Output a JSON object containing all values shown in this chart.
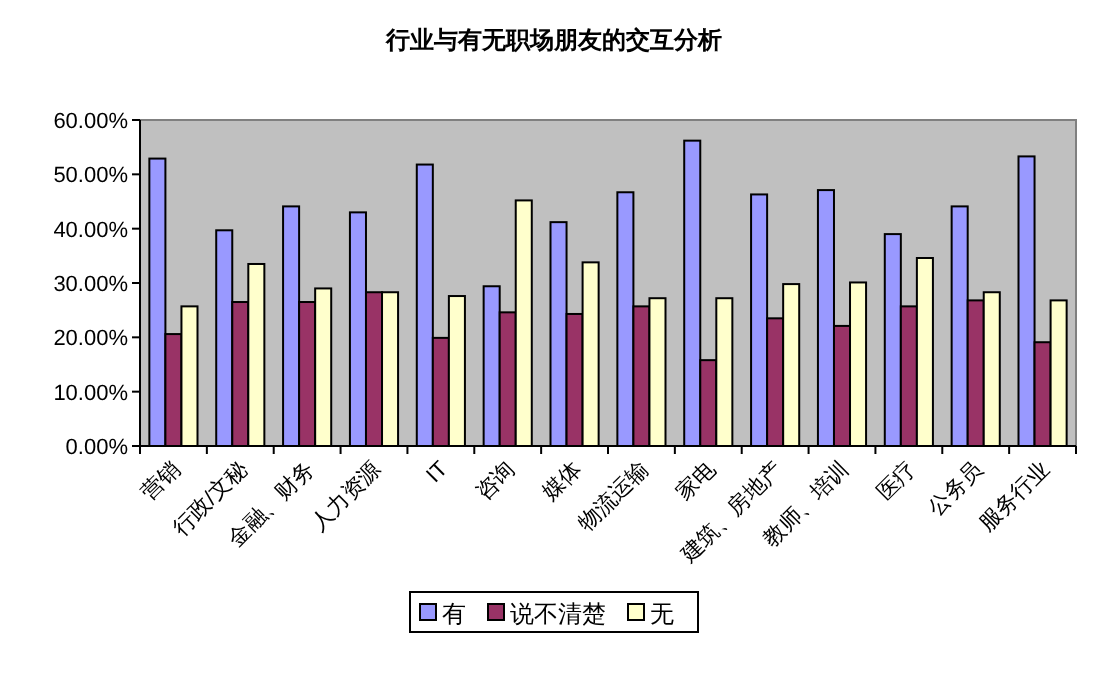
{
  "chart_data": {
    "type": "bar",
    "title": "行业与有无职场朋友的交互分析",
    "categories": [
      "营销",
      "行政/文秘",
      "金融、财务",
      "人力资源",
      "IT",
      "咨询",
      "媒体",
      "物流运输",
      "家电",
      "建筑、房地产",
      "教师、培训",
      "医疗",
      "公务员",
      "服务行业"
    ],
    "series": [
      {
        "name": "有",
        "color": "#9999ff",
        "values": [
          52.9,
          39.7,
          44.1,
          43.0,
          51.8,
          29.4,
          41.2,
          46.7,
          56.2,
          46.3,
          47.1,
          39.0,
          44.1,
          53.3
        ]
      },
      {
        "name": "说不清楚",
        "color": "#993366",
        "values": [
          20.6,
          26.5,
          26.5,
          28.3,
          19.9,
          24.6,
          24.3,
          25.7,
          15.8,
          23.5,
          22.1,
          25.7,
          26.8,
          19.1
        ]
      },
      {
        "name": "无",
        "color": "#ffffcc",
        "values": [
          25.7,
          33.5,
          29.0,
          28.3,
          27.6,
          45.2,
          33.8,
          27.2,
          27.2,
          29.8,
          30.1,
          34.6,
          28.3,
          26.8
        ]
      }
    ],
    "ylim": [
      0,
      60
    ],
    "yticks": [
      {
        "value": 0,
        "label": "0.00%"
      },
      {
        "value": 10,
        "label": "10.00%"
      },
      {
        "value": 20,
        "label": "20.00%"
      },
      {
        "value": 30,
        "label": "30.00%"
      },
      {
        "value": 40,
        "label": "40.00%"
      },
      {
        "value": 50,
        "label": "50.00%"
      },
      {
        "value": 60,
        "label": "60.00%"
      }
    ],
    "grid": false,
    "legend": "bottom"
  }
}
